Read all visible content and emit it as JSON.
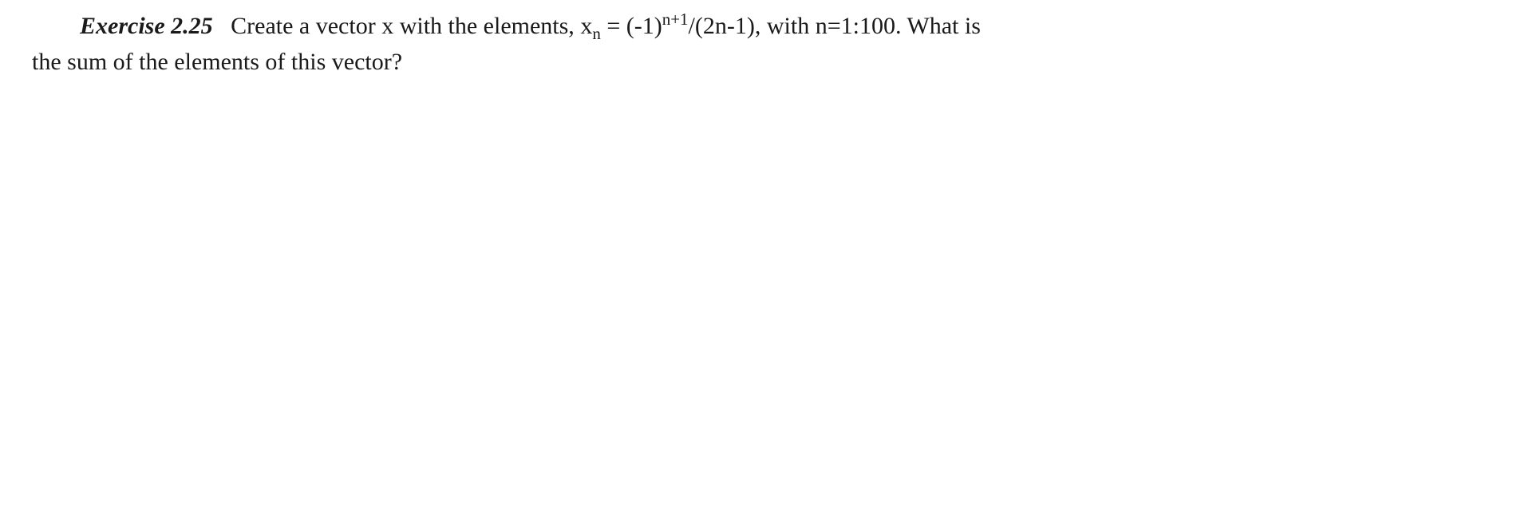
{
  "exercise": {
    "label": "Exercise 2.25",
    "text_part1": "Create a vector x with the elements, ",
    "formula_var": "x",
    "formula_sub": "n",
    "formula_eq": " = (-1)",
    "formula_sup": "n+1",
    "formula_rest": "/(2n-1), with n=1:100. What is",
    "text_part2": "the sum of the elements of this vector?"
  },
  "styling": {
    "background_color": "#ffffff",
    "text_color": "#1a1a1a",
    "font_family": "Times New Roman",
    "font_size_pt": 22,
    "label_font_style": "italic",
    "label_font_weight": "bold"
  }
}
